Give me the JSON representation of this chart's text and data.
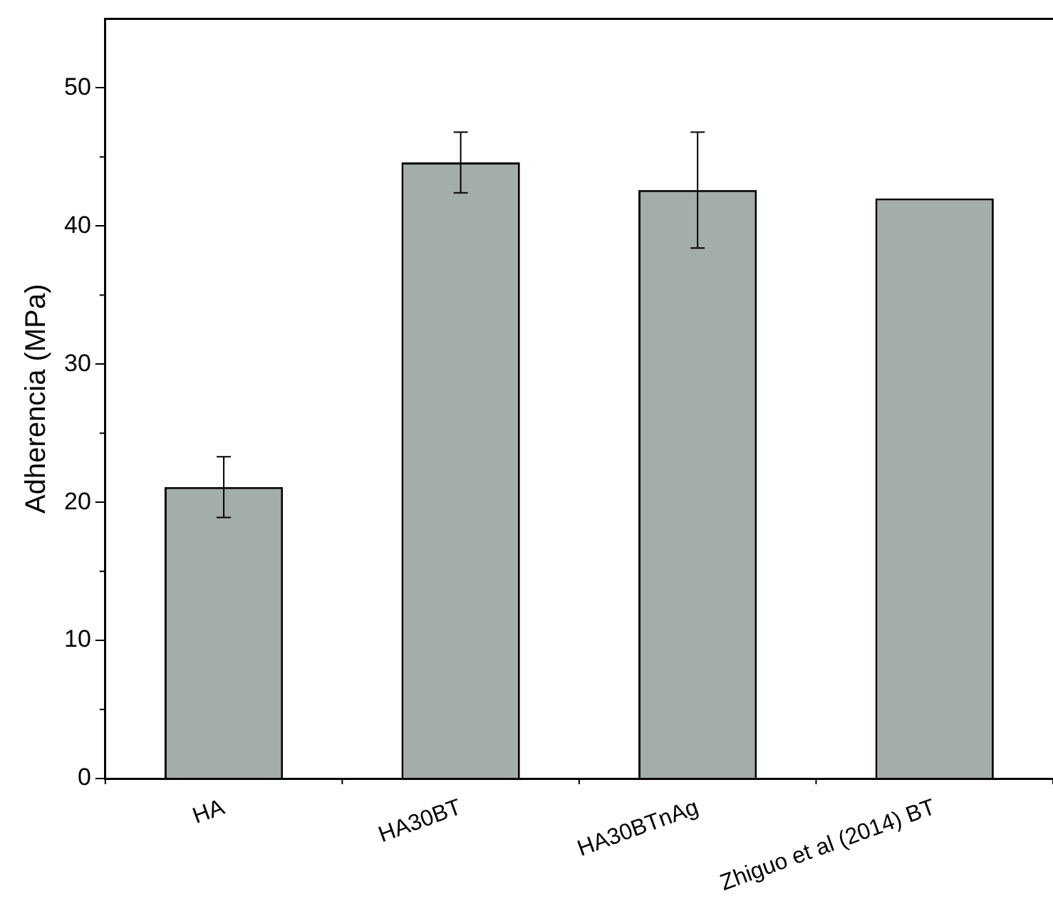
{
  "chart_data": {
    "type": "bar",
    "ylabel": "Adherencia (MPa)",
    "categories": [
      "HA",
      "HA30BT",
      "HA30BTnAg",
      "Zhiguo et al (2014) BT"
    ],
    "values": [
      21.1,
      44.6,
      42.6,
      42.0
    ],
    "errors": [
      2.2,
      2.2,
      4.2,
      null
    ],
    "color": "#a3adab",
    "ylim": [
      0,
      55
    ],
    "yticks": [
      0,
      10,
      20,
      30,
      40,
      50
    ],
    "grid": false,
    "legend": false
  }
}
